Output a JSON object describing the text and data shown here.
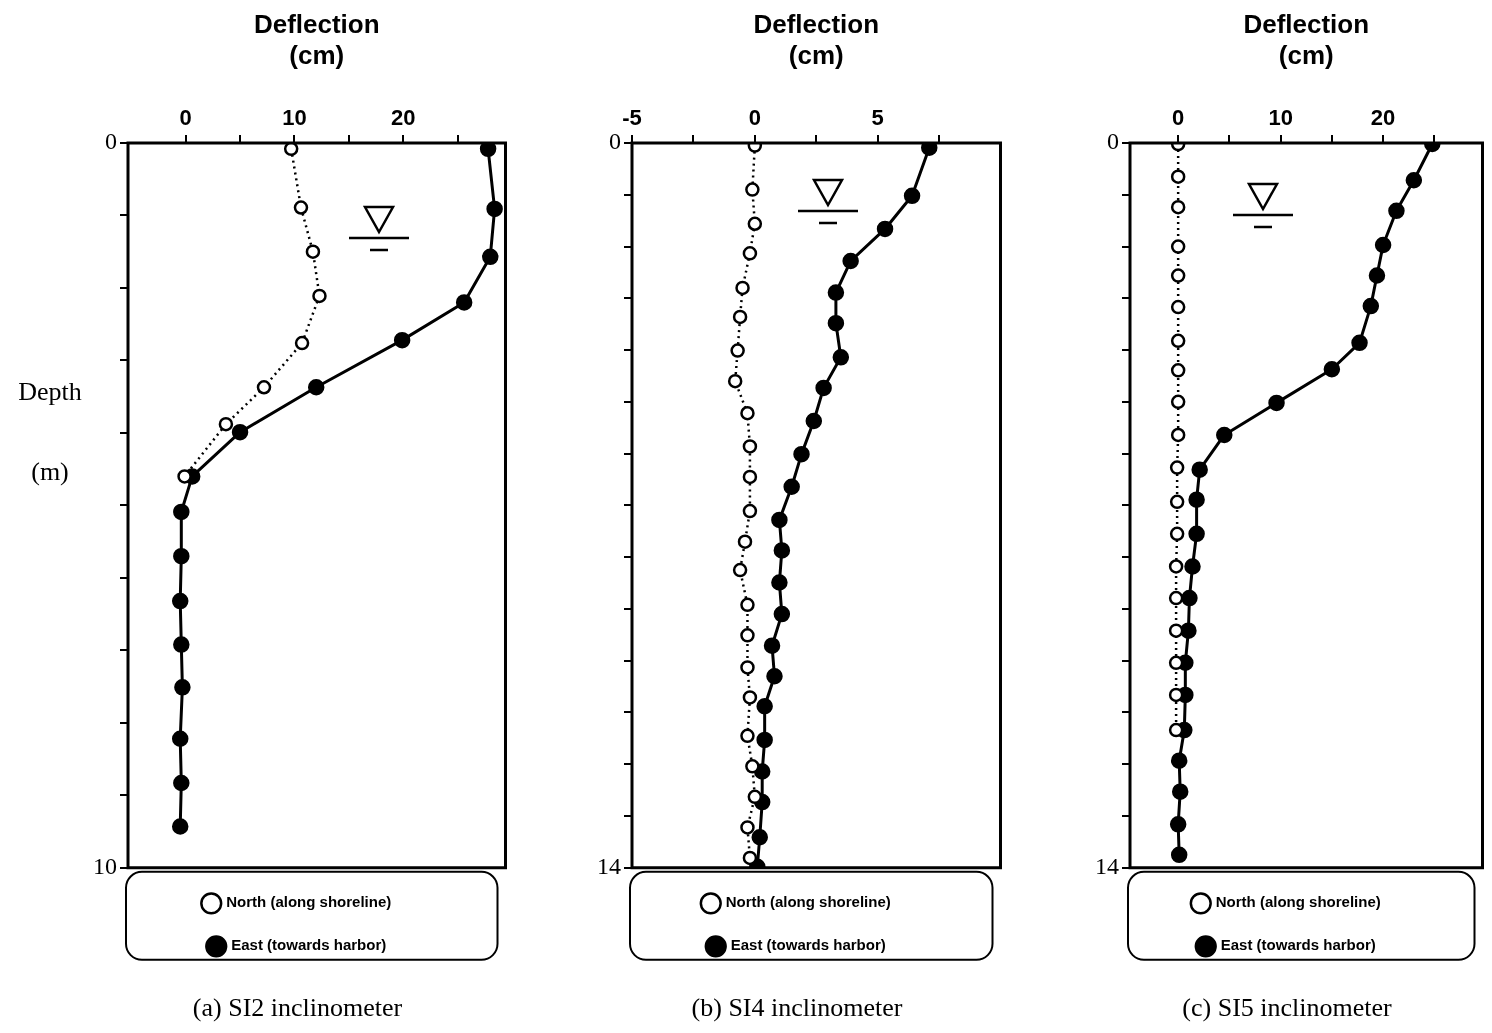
{
  "chart_data": [
    {
      "type": "line",
      "title": "(a) SI2 inclinometer",
      "xlabel": "Deflection\n(cm)",
      "ylabel": "Depth\n(m)",
      "xlim": [
        -5.3,
        29.4
      ],
      "xticks": [
        0,
        {
          "value": 5,
          "label": null
        },
        10,
        {
          "value": 15,
          "label": null
        },
        20,
        {
          "value": 25,
          "label": null
        }
      ],
      "ylim": [
        10,
        0
      ],
      "yticks": [
        0,
        {
          "value": 1,
          "label": null
        },
        {
          "value": 2,
          "label": null
        },
        {
          "value": 3,
          "label": null
        },
        {
          "value": 4,
          "label": null
        },
        {
          "value": 5,
          "label": null
        },
        {
          "value": 6,
          "label": null
        },
        {
          "value": 7,
          "label": null
        },
        {
          "value": 8,
          "label": null
        },
        {
          "value": 9,
          "label": null
        },
        10
      ],
      "legend": "bottom",
      "series": [
        {
          "name": "East (towards harbor)",
          "type": "line",
          "color": "#000000",
          "marker": "circle",
          "line_style": "solid",
          "x": [
            27.8,
            28.4,
            28.0,
            25.6,
            19.9,
            12.0,
            5.0,
            0.6,
            -0.4,
            -0.4,
            -0.5,
            -0.4,
            -0.3,
            -0.5,
            -0.4,
            -0.5
          ],
          "values": [
            0.08,
            0.91,
            1.57,
            2.2,
            2.72,
            3.37,
            3.99,
            4.6,
            5.09,
            5.7,
            6.32,
            6.92,
            7.51,
            8.22,
            8.83,
            9.43
          ]
        },
        {
          "name": "North (along shoreline)",
          "type": "line",
          "color": "#000000",
          "marker": "circle",
          "line_style": "dotted",
          "x": [
            9.7,
            10.6,
            11.7,
            12.3,
            10.7,
            7.2,
            3.7,
            -0.1
          ],
          "values": [
            0.08,
            0.89,
            1.5,
            2.11,
            2.76,
            3.37,
            3.88,
            4.6
          ]
        }
      ]
    },
    {
      "type": "line",
      "title": "(b) SI4 inclinometer",
      "xlabel": "Deflection\n(cm)",
      "xlim": [
        -5,
        10
      ],
      "xticks": [
        -5,
        {
          "value": -2.5,
          "label": null
        },
        0,
        {
          "value": 2.5,
          "label": null
        },
        5,
        {
          "value": 7.5,
          "label": null
        }
      ],
      "ylim": [
        14,
        0
      ],
      "yticks": [
        0,
        {
          "value": 1,
          "label": null
        },
        {
          "value": 2,
          "label": null
        },
        {
          "value": 3,
          "label": null
        },
        {
          "value": 4,
          "label": null
        },
        {
          "value": 5,
          "label": null
        },
        {
          "value": 6,
          "label": null
        },
        {
          "value": 7,
          "label": null
        },
        {
          "value": 8,
          "label": null
        },
        {
          "value": 9,
          "label": null
        },
        {
          "value": 10,
          "label": null
        },
        {
          "value": 11,
          "label": null
        },
        {
          "value": 12,
          "label": null
        },
        {
          "value": 13,
          "label": null
        },
        14
      ],
      "legend": "bottom",
      "series": [
        {
          "name": "East (towards harbor)",
          "type": "line",
          "color": "#000000",
          "marker": "circle",
          "line_style": "solid",
          "x": [
            7.1,
            6.4,
            5.3,
            3.9,
            3.3,
            3.3,
            3.5,
            2.8,
            2.4,
            1.9,
            1.5,
            1.0,
            1.1,
            1.0,
            1.1,
            0.7,
            0.8,
            0.4,
            0.4,
            0.3,
            0.3,
            0.2,
            0.1
          ],
          "values": [
            0.09,
            1.02,
            1.66,
            2.28,
            2.89,
            3.48,
            4.14,
            4.73,
            5.37,
            6.01,
            6.64,
            7.28,
            7.87,
            8.49,
            9.1,
            9.71,
            10.3,
            10.88,
            11.53,
            12.14,
            12.73,
            13.41,
            13.98
          ]
        },
        {
          "name": "North (along shoreline)",
          "type": "line",
          "color": "#000000",
          "marker": "circle",
          "line_style": "dotted",
          "x": [
            0,
            -0.1,
            0,
            -0.2,
            -0.5,
            -0.6,
            -0.7,
            -0.8,
            -0.3,
            -0.2,
            -0.2,
            -0.2,
            -0.4,
            -0.6,
            -0.3,
            -0.3,
            -0.3,
            -0.2,
            -0.3,
            -0.1,
            0,
            -0.3,
            -0.2
          ],
          "values": [
            0.05,
            0.9,
            1.56,
            2.13,
            2.8,
            3.36,
            4.01,
            4.6,
            5.22,
            5.86,
            6.45,
            7.11,
            7.7,
            8.25,
            8.92,
            9.51,
            10.13,
            10.71,
            11.45,
            12.04,
            12.63,
            13.22,
            13.81
          ]
        }
      ]
    },
    {
      "type": "line",
      "title": "(c) SI5 inclinometer",
      "xlabel": "Deflection\n(cm)",
      "xlim": [
        -4.7,
        29.7
      ],
      "xticks": [
        0,
        {
          "value": 5,
          "label": null
        },
        10,
        {
          "value": 15,
          "label": null
        },
        20,
        {
          "value": 25,
          "label": null
        }
      ],
      "ylim": [
        14,
        0
      ],
      "yticks": [
        0,
        {
          "value": 1,
          "label": null
        },
        {
          "value": 2,
          "label": null
        },
        {
          "value": 3,
          "label": null
        },
        {
          "value": 4,
          "label": null
        },
        {
          "value": 5,
          "label": null
        },
        {
          "value": 6,
          "label": null
        },
        {
          "value": 7,
          "label": null
        },
        {
          "value": 8,
          "label": null
        },
        {
          "value": 9,
          "label": null
        },
        {
          "value": 10,
          "label": null
        },
        {
          "value": 11,
          "label": null
        },
        {
          "value": 12,
          "label": null
        },
        {
          "value": 13,
          "label": null
        },
        14
      ],
      "legend": "bottom",
      "series": [
        {
          "name": "East (towards harbor)",
          "type": "line",
          "color": "#000000",
          "marker": "circle",
          "line_style": "solid",
          "x": [
            24.8,
            23.0,
            21.3,
            20.0,
            19.4,
            18.8,
            17.7,
            15.0,
            9.6,
            4.5,
            2.1,
            1.8,
            1.8,
            1.4,
            1.1,
            1.0,
            0.7,
            0.7,
            0.6,
            0.1,
            0.2,
            0.0,
            0.1
          ],
          "values": [
            0.02,
            0.72,
            1.31,
            1.97,
            2.56,
            3.15,
            3.86,
            4.37,
            5.02,
            5.64,
            6.31,
            6.89,
            7.55,
            8.18,
            8.79,
            9.42,
            10.04,
            10.66,
            11.34,
            11.93,
            12.53,
            13.16,
            13.75
          ]
        },
        {
          "name": "North (along shoreline)",
          "type": "line",
          "color": "#000000",
          "marker": "circle",
          "line_style": "dotted",
          "x": [
            0,
            0,
            0,
            0,
            0,
            0,
            0,
            0,
            0,
            0,
            -0.1,
            -0.1,
            -0.1,
            -0.2,
            -0.2,
            -0.2,
            -0.2,
            -0.2,
            -0.2
          ],
          "values": [
            0.02,
            0.65,
            1.24,
            2.0,
            2.56,
            3.17,
            3.82,
            4.39,
            5.0,
            5.64,
            6.27,
            6.93,
            7.55,
            8.18,
            8.79,
            9.42,
            10.04,
            10.66,
            11.34
          ]
        }
      ]
    }
  ]
}
